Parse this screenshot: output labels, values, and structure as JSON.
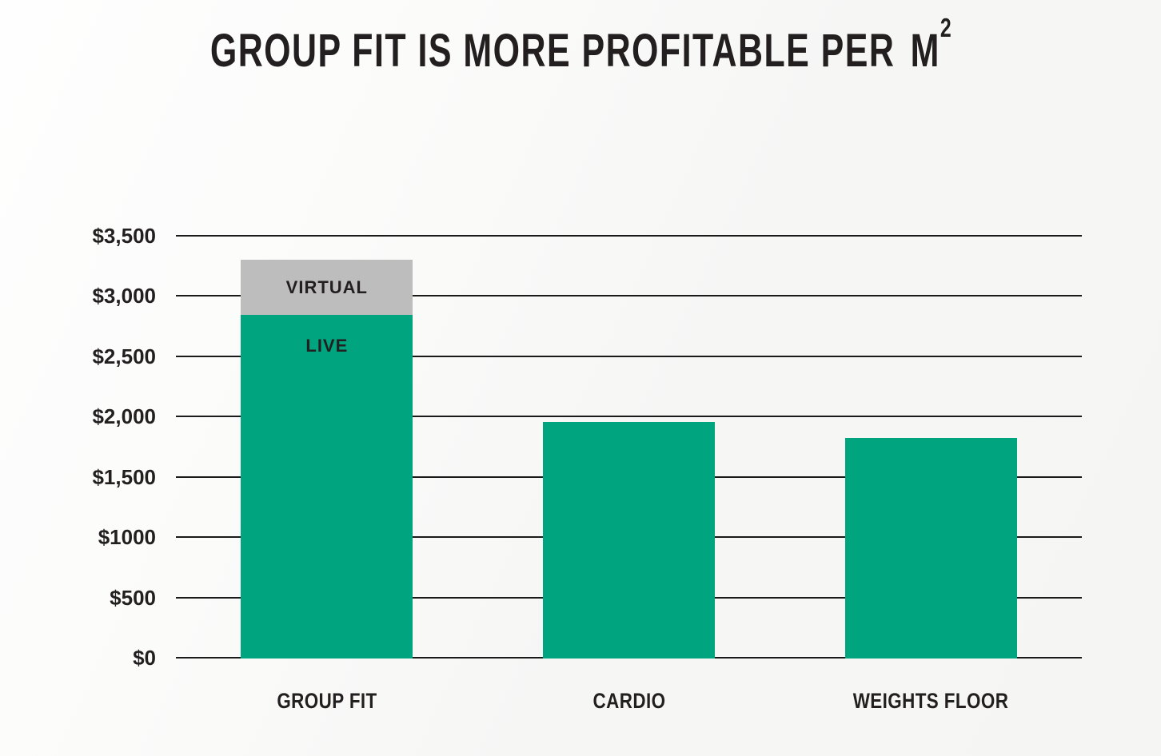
{
  "title": {
    "main": "GROUP FIT IS MORE PROFITABLE PER",
    "unit": "M",
    "sup": "2"
  },
  "colors": {
    "live_green": "#00A47E",
    "virtual_gray": "#BDBDBD",
    "text_dark": "#231F20",
    "gridline": "#1A1A1A",
    "background_light": "#F6F6F5"
  },
  "chart_data": {
    "type": "bar",
    "stacked": true,
    "title": "GROUP FIT IS MORE PROFITABLE PER M²",
    "categories": [
      "GROUP FIT",
      "CARDIO",
      "WEIGHTS FLOOR"
    ],
    "series": [
      {
        "name": "LIVE",
        "color": "#00A47E",
        "values": [
          2845,
          1955,
          1820
        ],
        "label_shown_on": "GROUP FIT"
      },
      {
        "name": "VIRTUAL",
        "color": "#BDBDBD",
        "values": [
          455,
          0,
          0
        ],
        "label_shown_on": "GROUP FIT"
      }
    ],
    "y_ticks": [
      {
        "label": "$3,500",
        "value": 3500
      },
      {
        "label": "$3,000",
        "value": 3000
      },
      {
        "label": "$2,500",
        "value": 2500
      },
      {
        "label": "$2,000",
        "value": 2000
      },
      {
        "label": "$1,500",
        "value": 1500
      },
      {
        "label": "$1000",
        "value": 1000
      },
      {
        "label": "$500",
        "value": 500
      },
      {
        "label": "$0",
        "value": 0
      }
    ],
    "ylim": [
      0,
      3500
    ],
    "xlabel": "",
    "ylabel": "",
    "grid": "horizontal",
    "legend": "none"
  }
}
